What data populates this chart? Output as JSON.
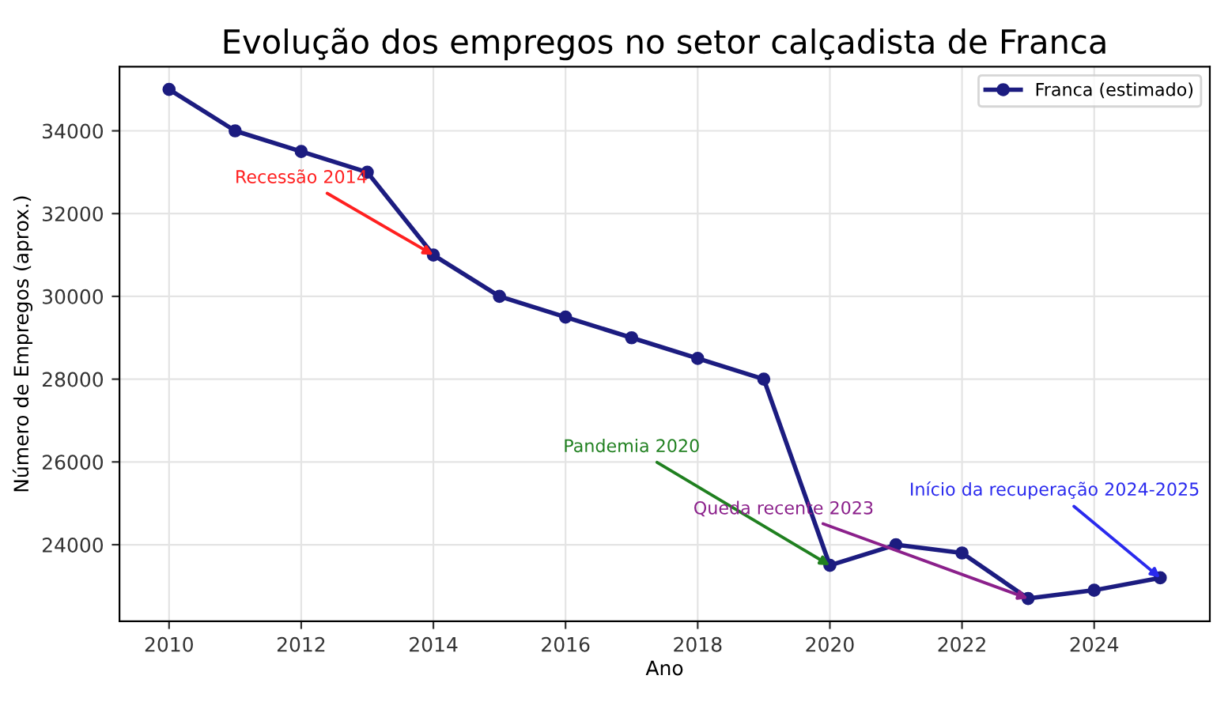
{
  "chart_data": {
    "type": "line",
    "title": "Evolução dos empregos no setor calçadista de Franca",
    "xlabel": "Ano",
    "ylabel": "Número de Empregos (aprox.)",
    "x": [
      2010,
      2011,
      2012,
      2013,
      2014,
      2015,
      2016,
      2017,
      2018,
      2019,
      2020,
      2021,
      2022,
      2023,
      2024,
      2025
    ],
    "series": [
      {
        "name": "Franca (estimado)",
        "color": "#1c1c80",
        "values": [
          35000,
          34000,
          33500,
          33000,
          31000,
          30000,
          29500,
          29000,
          28500,
          28000,
          23500,
          24000,
          23800,
          22700,
          22900,
          23200
        ]
      }
    ],
    "xlim": [
      2009.25,
      2025.75
    ],
    "ylim": [
      22150,
      35550
    ],
    "xticks": [
      2010,
      2012,
      2014,
      2016,
      2018,
      2020,
      2022,
      2024
    ],
    "yticks": [
      24000,
      26000,
      28000,
      30000,
      32000,
      34000
    ],
    "annotations": [
      {
        "text": "Recessão 2014",
        "x": 2014,
        "y": 31000
      },
      {
        "text": "Pandemia 2020",
        "x": 2020,
        "y": 23500
      },
      {
        "text": "Queda recente 2023",
        "x": 2023,
        "y": 22700
      },
      {
        "text": "Início da recuperação 2024-2025",
        "x": 2025,
        "y": 23200
      }
    ],
    "grid": true,
    "legend": "top right",
    "marker": "circle",
    "line_style": "solid"
  }
}
